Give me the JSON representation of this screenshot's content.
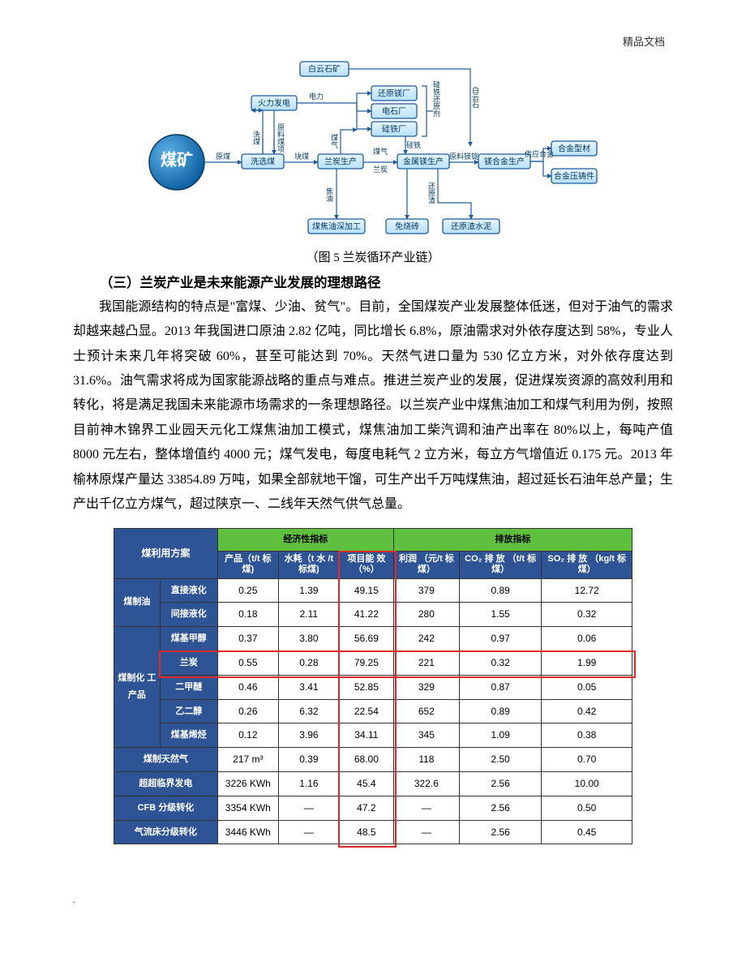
{
  "header_mark": "精品文档",
  "footer_dot": ".",
  "diagram": {
    "caption": "（图 5  兰炭循环产业链）",
    "big_node": "煤矿",
    "nodes": {
      "baiyun": "白云石矿",
      "huoli": "火力发电",
      "xixuan": "洗选煤",
      "lantan": "兰炭生产",
      "huanyuan": "还原镁厂",
      "dianshi": "电石厂",
      "guitie": "硅铁厂",
      "jinshumg": "金属镁生产",
      "meihejin": "镁合金生产",
      "hejinxingcai": "合金型材",
      "hejinyazhu": "合金压铸件",
      "meijiaoyou": "煤焦油深加工",
      "mianshao": "免烧砖",
      "huanyuanzha": "还原渣水泥"
    },
    "right_label": "白云石",
    "right_label2": "硅铁还原剂",
    "edge_labels": {
      "yuanmei": "原煤",
      "dianli": "电力",
      "meiqi": "煤气",
      "kuaimei": "块煤",
      "lantan_lbl": "兰炭",
      "jiaoyou": "焦油",
      "ximei": "洗煤",
      "yuanliaomeixiong": "原料煤项",
      "guitie_lbl": "硅铁",
      "yuanliaomei": "原料镁锭",
      "gongyinghe": "供应合金",
      "huanyuan_zha": "还原渣"
    }
  },
  "section_title": "（三）兰炭产业是未来能源产业发展的理想路径",
  "paragraph": "我国能源结构的特点是\"富煤、少油、贫气\"。目前，全国煤炭产业发展整体低迷，但对于油气的需求却越来越凸显。2013 年我国进口原油 2.82 亿吨，同比增长 6.8%，原油需求对外依存度达到 58%，专业人士预计未来几年将突破 60%，甚至可能达到 70%。天然气进口量为 530 亿立方米，对外依存度达到 31.6%。油气需求将成为国家能源战略的重点与难点。推进兰炭产业的发展，促进煤炭资源的高效利用和转化，将是满足我国未来能源市场需求的一条理想路径。以兰炭产业中煤焦油加工和煤气利用为例，按照目前神木锦界工业园天元化工煤焦油加工模式，煤焦油加工柴汽调和油产出率在 80%以上，每吨产值 8000 元左右，整体增值约 4000 元；煤气发电，每度电耗气 2 立方米，每立方气增值近 0.175 元。2013 年榆林原煤产量达 33854.89 万吨，如果全部就地干馏，可生产出千万吨煤焦油，超过延长石油年总产量；生产出千亿立方煤气，超过陕京一、二线年天然气供气总量。",
  "table": {
    "top_headers": {
      "scheme": "煤利用方案",
      "econ": "经济性指标",
      "emit": "排放指标"
    },
    "sub_headers": {
      "product": "产品（t/t\n标煤)",
      "water": "水耗（t 水\n/t 标煤)",
      "eff": "项目能\n效（%）",
      "profit": "利润\n（元/t 标煤）",
      "co2": "CO₂ 排 放\n（t/t 标煤）",
      "so2": "SO₂ 排 放\n（kg/t 标煤）"
    },
    "groups": [
      {
        "label": "煤制油",
        "rows": [
          {
            "name": "直接液化",
            "product": "0.25",
            "water": "1.39",
            "eff": "49.15",
            "profit": "379",
            "co2": "0.89",
            "so2": "12.72"
          },
          {
            "name": "间接液化",
            "product": "0.18",
            "water": "2.11",
            "eff": "41.22",
            "profit": "280",
            "co2": "1.55",
            "so2": "0.32"
          }
        ]
      },
      {
        "label": "煤制化\n工产品",
        "rows": [
          {
            "name": "煤基甲醇",
            "product": "0.37",
            "water": "3.80",
            "eff": "56.69",
            "profit": "242",
            "co2": "0.97",
            "so2": "0.06"
          },
          {
            "name": "兰炭",
            "product": "0.55",
            "water": "0.28",
            "eff": "79.25",
            "profit": "221",
            "co2": "0.32",
            "so2": "1.99",
            "highlight": true
          },
          {
            "name": "二甲醚",
            "product": "0.46",
            "water": "3.41",
            "eff": "52.85",
            "profit": "329",
            "co2": "0.87",
            "so2": "0.05"
          },
          {
            "name": "乙二醇",
            "product": "0.26",
            "water": "6.32",
            "eff": "22.54",
            "profit": "652",
            "co2": "0.89",
            "so2": "0.42"
          },
          {
            "name": "煤基烯烃",
            "product": "0.12",
            "water": "3.96",
            "eff": "34.11",
            "profit": "345",
            "co2": "1.09",
            "so2": "0.38"
          }
        ]
      },
      {
        "label": null,
        "rows": [
          {
            "name": "煤制天然气",
            "product": "217 m³",
            "water": "0.39",
            "eff": "68.00",
            "profit": "118",
            "co2": "2.50",
            "so2": "0.70",
            "span": true
          },
          {
            "name": "超超临界发电",
            "product": "3226 KWh",
            "water": "1.16",
            "eff": "45.4",
            "profit": "322.6",
            "co2": "2.56",
            "so2": "10.00",
            "span": true
          },
          {
            "name": "CFB 分级转化",
            "product": "3354 KWh",
            "water": "—",
            "eff": "47.2",
            "profit": "—",
            "co2": "2.56",
            "so2": "0.50",
            "span": true
          },
          {
            "name": "气流床分级转化",
            "product": "3446 KWh",
            "water": "—",
            "eff": "48.5",
            "profit": "—",
            "co2": "2.56",
            "so2": "0.45",
            "span": true
          }
        ]
      }
    ],
    "highlight_color": "#e02828",
    "header_bg": "#2f5496",
    "group_bg": "#5fbf3f"
  }
}
